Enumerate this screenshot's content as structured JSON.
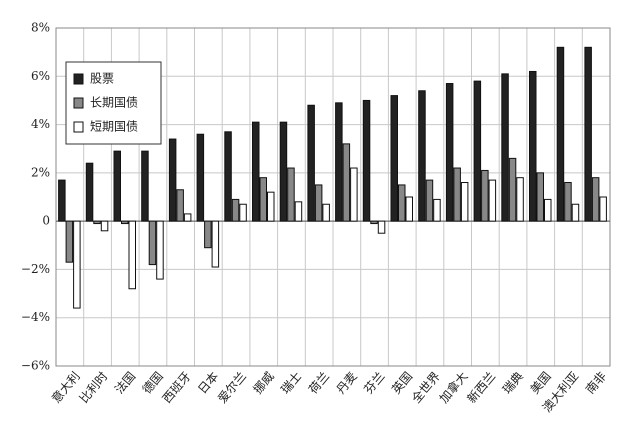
{
  "chart_data": {
    "type": "bar",
    "categories": [
      "意大利",
      "比利时",
      "法国",
      "德国",
      "西班牙",
      "日本",
      "爱尔兰",
      "挪威",
      "瑞士",
      "荷兰",
      "丹麦",
      "芬兰",
      "英国",
      "全世界",
      "加拿大",
      "新西兰",
      "瑞典",
      "美国",
      "澳大利亚",
      "南非"
    ],
    "series": [
      {
        "name": "股票",
        "color": "#222222",
        "values": [
          1.7,
          2.4,
          2.9,
          2.9,
          3.4,
          3.6,
          3.7,
          4.1,
          4.1,
          4.8,
          4.9,
          5.0,
          5.2,
          5.4,
          5.7,
          5.8,
          6.1,
          6.2,
          7.2,
          7.2
        ]
      },
      {
        "name": "长期国债",
        "color": "#888888",
        "values": [
          -1.7,
          -0.1,
          -0.1,
          -1.8,
          1.3,
          -1.1,
          0.9,
          1.8,
          2.2,
          1.5,
          3.2,
          -0.1,
          1.5,
          1.7,
          2.2,
          2.1,
          2.6,
          2.0,
          1.6,
          1.8
        ]
      },
      {
        "name": "短期国债",
        "color": "#ffffff",
        "values": [
          -3.6,
          -0.4,
          -2.8,
          -2.4,
          0.3,
          -1.9,
          0.7,
          1.2,
          0.8,
          0.7,
          2.2,
          -0.5,
          1.0,
          0.9,
          1.6,
          1.7,
          1.8,
          0.9,
          0.7,
          1.0
        ]
      }
    ],
    "ylim": [
      -6,
      8
    ],
    "yticks": [
      {
        "value": -6,
        "label": "−6%"
      },
      {
        "value": -4,
        "label": "−4%"
      },
      {
        "value": -2,
        "label": "−2%"
      },
      0,
      {
        "value": 2,
        "label": "2%"
      },
      {
        "value": 4,
        "label": "4%"
      },
      {
        "value": 6,
        "label": "6%"
      },
      {
        "value": 8,
        "label": "8%"
      }
    ],
    "grid": true,
    "legend": "upper left"
  }
}
